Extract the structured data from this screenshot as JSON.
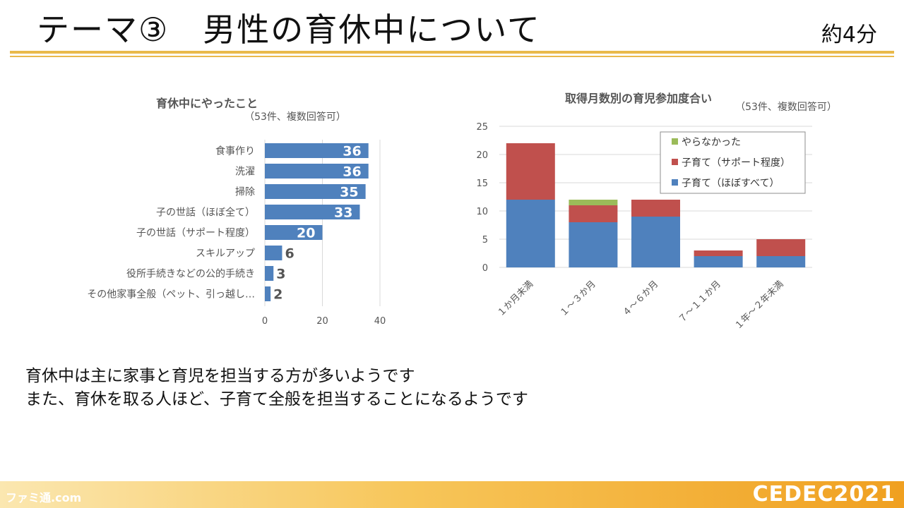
{
  "slide": {
    "title": "テーマ③　男性の育休中について",
    "duration": "約4分",
    "body_lines": [
      "育休中は主に家事と育児を担当する方が多いようです",
      "また、育休を取る人ほど、子育て全般を担当することになるようです"
    ],
    "footer_left": "ファミ通.com",
    "footer_right": "CEDEC2021"
  },
  "colors": {
    "bar": "#4f81bd",
    "red": "#c0504d",
    "green": "#9bbb59",
    "grid": "#d9d9d9",
    "accent_rule": "#e9b94a"
  },
  "chart_data": [
    {
      "type": "bar",
      "orientation": "horizontal",
      "title": "育休中にやったこと",
      "subtitle": "（53件、複数回答可）",
      "categories": [
        "食事作り",
        "洗濯",
        "掃除",
        "子の世話（ほぼ全て）",
        "子の世話（サポート程度）",
        "スキルアップ",
        "役所手続きなどの公的手続き",
        "その他家事全般（ペット、引っ越し…"
      ],
      "values": [
        36,
        36,
        35,
        33,
        20,
        6,
        3,
        2
      ],
      "xlim": [
        0,
        40
      ],
      "xticks": [
        0,
        20,
        40
      ],
      "grid": true
    },
    {
      "type": "bar",
      "stacked": true,
      "title": "取得月数別の育児参加度合い",
      "subtitle": "（53件、複数回答可）",
      "categories": [
        "１か月未満",
        "１～３か月",
        "４～６か月",
        "７～１１か月",
        "１年～２年未満"
      ],
      "series": [
        {
          "name": "子育て（ほぼすべて）",
          "color": "#4f81bd",
          "values": [
            12,
            8,
            9,
            2,
            2
          ]
        },
        {
          "name": "子育て（サポート程度）",
          "color": "#c0504d",
          "values": [
            10,
            3,
            3,
            1,
            3
          ]
        },
        {
          "name": "やらなかった",
          "color": "#9bbb59",
          "values": [
            0,
            1,
            0,
            0,
            0
          ]
        }
      ],
      "legend_order": [
        "やらなかった",
        "子育て（サポート程度）",
        "子育て（ほぼすべて）"
      ],
      "ylim": [
        0,
        25
      ],
      "yticks": [
        0,
        5,
        10,
        15,
        20,
        25
      ],
      "legend": "top-right",
      "grid": true
    }
  ]
}
